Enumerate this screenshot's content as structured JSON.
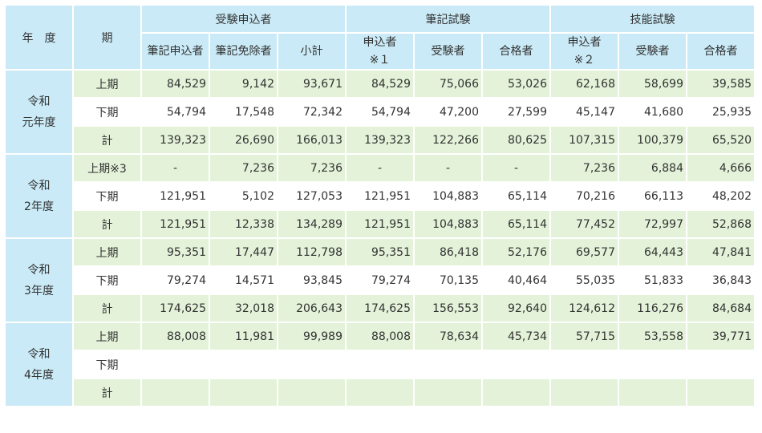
{
  "headers": {
    "year": "年　度",
    "period": "期",
    "group_applicants": "受験申込者",
    "group_written": "筆記試験",
    "group_skill": "技能試験",
    "sub": [
      "筆記申込者",
      "筆記免除者",
      "小計",
      "申込者\n※１",
      "受験者",
      "合格者",
      "申込者\n※２",
      "受験者",
      "合格者"
    ]
  },
  "years": [
    {
      "label": "令和\n元年度",
      "rows": [
        {
          "period": "上期",
          "values": [
            "84,529",
            "9,142",
            "93,671",
            "84,529",
            "75,066",
            "53,026",
            "62,168",
            "58,699",
            "39,585"
          ]
        },
        {
          "period": "下期",
          "values": [
            "54,794",
            "17,548",
            "72,342",
            "54,794",
            "47,200",
            "27,599",
            "45,147",
            "41,680",
            "25,935"
          ]
        },
        {
          "period": "計",
          "values": [
            "139,323",
            "26,690",
            "166,013",
            "139,323",
            "122,266",
            "80,625",
            "107,315",
            "100,379",
            "65,520"
          ]
        }
      ]
    },
    {
      "label": "令和\n2年度",
      "rows": [
        {
          "period": "上期※3",
          "values": [
            "-",
            "7,236",
            "7,236",
            "-",
            "-",
            "-",
            "7,236",
            "6,884",
            "4,666"
          ]
        },
        {
          "period": "下期",
          "values": [
            "121,951",
            "5,102",
            "127,053",
            "121,951",
            "104,883",
            "65,114",
            "70,216",
            "66,113",
            "48,202"
          ]
        },
        {
          "period": "計",
          "values": [
            "121,951",
            "12,338",
            "134,289",
            "121,951",
            "104,883",
            "65,114",
            "77,452",
            "72,997",
            "52,868"
          ]
        }
      ]
    },
    {
      "label": "令和\n3年度",
      "rows": [
        {
          "period": "上期",
          "values": [
            "95,351",
            "17,447",
            "112,798",
            "95,351",
            "86,418",
            "52,176",
            "69,577",
            "64,443",
            "47,841"
          ]
        },
        {
          "period": "下期",
          "values": [
            "79,274",
            "14,571",
            "93,845",
            "79,274",
            "70,135",
            "40,464",
            "55,035",
            "51,833",
            "36,843"
          ]
        },
        {
          "period": "計",
          "values": [
            "174,625",
            "32,018",
            "206,643",
            "174,625",
            "156,553",
            "92,640",
            "124,612",
            "116,276",
            "84,684"
          ]
        }
      ]
    },
    {
      "label": "令和\n4年度",
      "rows": [
        {
          "period": "上期",
          "values": [
            "88,008",
            "11,981",
            "99,989",
            "88,008",
            "78,634",
            "45,734",
            "57,715",
            "53,558",
            "39,771"
          ]
        },
        {
          "period": "下期",
          "values": [
            "",
            "",
            "",
            "",
            "",
            "",
            "",
            "",
            ""
          ]
        },
        {
          "period": "計",
          "values": [
            "",
            "",
            "",
            "",
            "",
            "",
            "",
            "",
            ""
          ]
        }
      ]
    }
  ]
}
